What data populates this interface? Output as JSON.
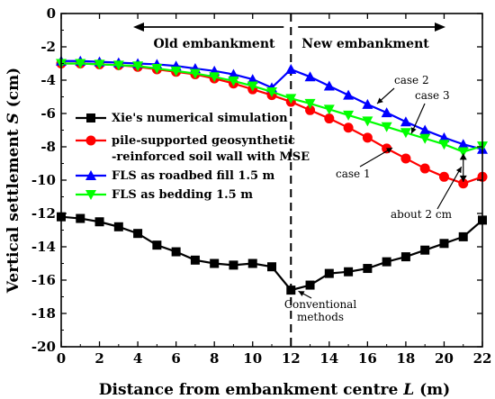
{
  "chart_data": {
    "type": "line",
    "xlabel": "Distance from embankment centre L (m)",
    "ylabel": "Vertical settlement S (cm)",
    "xlim": [
      0,
      22
    ],
    "ylim": [
      -20,
      0
    ],
    "xticks": [
      0,
      2,
      4,
      6,
      8,
      10,
      12,
      14,
      16,
      18,
      20,
      22
    ],
    "yticks": [
      0,
      -2,
      -4,
      -6,
      -8,
      -10,
      -12,
      -14,
      -16,
      -18,
      -20
    ],
    "grid": false,
    "legend_position": "center-left",
    "region_labels": {
      "left": "Old embankment",
      "right": "New embankment"
    },
    "divider_x": 12,
    "series": [
      {
        "name": "Xie's numerical simulation",
        "color": "#000000",
        "marker": "square",
        "x": [
          0,
          1,
          2,
          3,
          4,
          5,
          6,
          7,
          8,
          9,
          10,
          11,
          12,
          13,
          14,
          15,
          16,
          17,
          18,
          19,
          20,
          21,
          22
        ],
        "y": [
          -12.2,
          -12.3,
          -12.5,
          -12.8,
          -13.2,
          -13.9,
          -14.3,
          -14.8,
          -15.0,
          -15.1,
          -15.0,
          -15.2,
          -16.6,
          -16.3,
          -15.6,
          -15.5,
          -15.3,
          -14.9,
          -14.6,
          -14.2,
          -13.8,
          -13.4,
          -12.4
        ]
      },
      {
        "name": "pile-supported geosynthetic -reinforced soil wall with MSE",
        "label_lines": [
          "pile-supported geosynthetic",
          "-reinforced soil wall with MSE"
        ],
        "color": "#ff0000",
        "marker": "circle",
        "x": [
          0,
          1,
          2,
          3,
          4,
          5,
          6,
          7,
          8,
          9,
          10,
          11,
          12,
          13,
          14,
          15,
          16,
          17,
          18,
          19,
          20,
          21,
          22
        ],
        "y": [
          -3.0,
          -3.0,
          -3.05,
          -3.1,
          -3.2,
          -3.35,
          -3.5,
          -3.65,
          -3.9,
          -4.2,
          -4.55,
          -4.9,
          -5.3,
          -5.8,
          -6.3,
          -6.85,
          -7.45,
          -8.1,
          -8.7,
          -9.3,
          -9.8,
          -10.2,
          -9.8
        ]
      },
      {
        "name": "FLS as roadbed fill 1.5 m",
        "color": "#0000ff",
        "marker": "triangle-up",
        "x": [
          0,
          1,
          2,
          3,
          4,
          5,
          6,
          7,
          8,
          9,
          10,
          11,
          12,
          13,
          14,
          15,
          16,
          17,
          18,
          19,
          20,
          21,
          22
        ],
        "y": [
          -2.85,
          -2.85,
          -2.9,
          -2.95,
          -3.0,
          -3.05,
          -3.15,
          -3.3,
          -3.45,
          -3.65,
          -3.95,
          -4.45,
          -3.35,
          -3.8,
          -4.35,
          -4.9,
          -5.45,
          -5.95,
          -6.5,
          -7.0,
          -7.45,
          -7.85,
          -8.15
        ]
      },
      {
        "name": "FLS as bedding 1.5 m",
        "color": "#00ff00",
        "marker": "triangle-down",
        "x": [
          0,
          1,
          2,
          3,
          4,
          5,
          6,
          7,
          8,
          9,
          10,
          11,
          12,
          13,
          14,
          15,
          16,
          17,
          18,
          19,
          20,
          21,
          22
        ],
        "y": [
          -3.0,
          -3.0,
          -3.05,
          -3.1,
          -3.15,
          -3.3,
          -3.45,
          -3.6,
          -3.8,
          -4.05,
          -4.35,
          -4.7,
          -5.1,
          -5.4,
          -5.75,
          -6.1,
          -6.45,
          -6.8,
          -7.15,
          -7.5,
          -7.85,
          -8.3,
          -7.95
        ]
      }
    ],
    "annotations": [
      {
        "text": "case 2",
        "target": [
          16.5,
          -5.3
        ]
      },
      {
        "text": "case 3",
        "target": [
          18.2,
          -7.2
        ]
      },
      {
        "text": "case 1",
        "target": [
          17.3,
          -7.9
        ]
      },
      {
        "text": "about 2 cm",
        "target": [
          21,
          -9.2
        ]
      },
      {
        "text": "Conventional",
        "text2": "methods",
        "target": [
          12.2,
          -16.5
        ]
      }
    ]
  }
}
